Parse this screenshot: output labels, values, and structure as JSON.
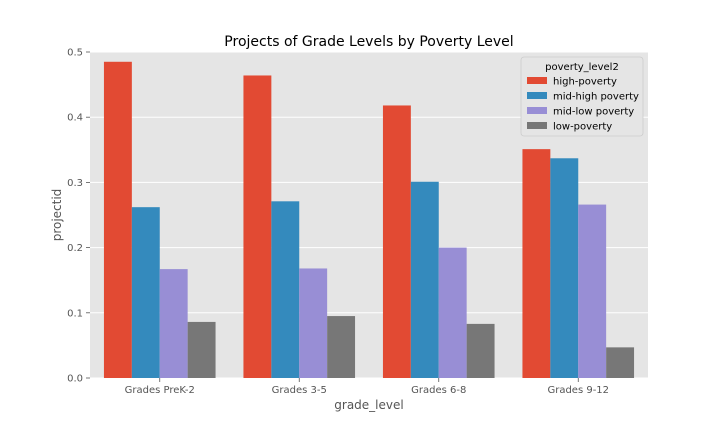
{
  "chart_data": {
    "type": "bar",
    "title": "Projects of Grade Levels by Poverty Level",
    "xlabel": "grade_level",
    "ylabel": "projectid",
    "categories": [
      "Grades PreK-2",
      "Grades 3-5",
      "Grades 6-8",
      "Grades 9-12"
    ],
    "ylim": [
      0,
      0.5
    ],
    "yticks": [
      "0.0",
      "0.1",
      "0.2",
      "0.3",
      "0.4",
      "0.5"
    ],
    "grid": true,
    "legend": {
      "title": "poverty_level2",
      "placement": "top-right"
    },
    "series": [
      {
        "name": "high-poverty",
        "color": "#E24A33",
        "values": [
          0.485,
          0.464,
          0.418,
          0.351
        ]
      },
      {
        "name": "mid-high poverty",
        "color": "#348ABD",
        "values": [
          0.262,
          0.271,
          0.301,
          0.337
        ]
      },
      {
        "name": "mid-low poverty",
        "color": "#988ED5",
        "values": [
          0.167,
          0.168,
          0.2,
          0.266
        ]
      },
      {
        "name": "low-poverty",
        "color": "#777777",
        "values": [
          0.086,
          0.095,
          0.083,
          0.047
        ]
      }
    ],
    "colors": {
      "plot_background": "#E5E5E5",
      "grid": "#FFFFFF"
    }
  }
}
